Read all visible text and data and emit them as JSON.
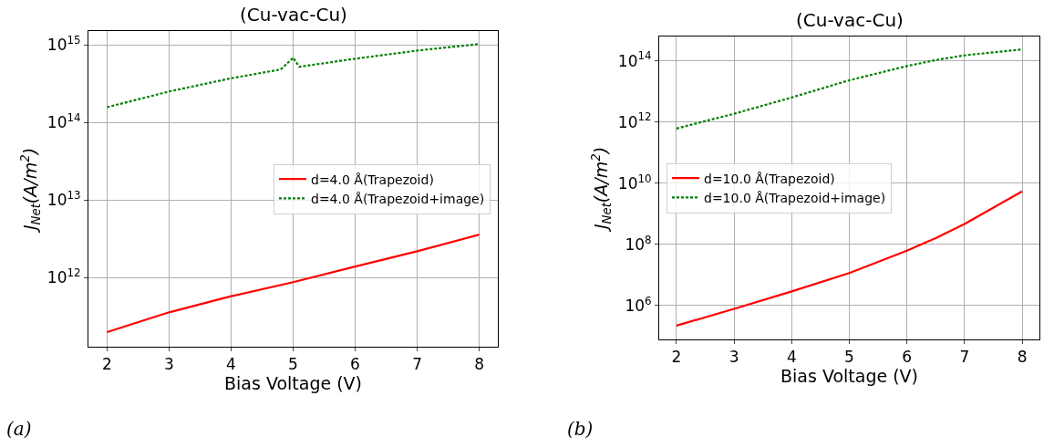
{
  "chart_data": [
    {
      "type": "line",
      "title": "(Cu-vac-Cu)",
      "xlabel": "Bias Voltage (V)",
      "ylabel": "J$_{Net}$(A/m$^{2}$)",
      "log": "y",
      "grid": true,
      "legend": "right",
      "xlim": [
        1.7,
        8.3
      ],
      "xticks": [
        2,
        3,
        4,
        5,
        6,
        7,
        8
      ],
      "ylim": [
        130000000000.0,
        1500000000000000.0
      ],
      "yticks": [
        {
          "value": 1000000000000.0,
          "label": "10$^{12}$"
        },
        {
          "value": 10000000000000.0,
          "label": "10$^{13}$"
        },
        {
          "value": 100000000000000.0,
          "label": "10$^{14}$"
        },
        {
          "value": 1000000000000000.0,
          "label": "10$^{15}$"
        }
      ],
      "annotations": [
        "(a)"
      ],
      "series": [
        {
          "name": "d=4.0 Å(Trapezoid)",
          "color": "#ff0000",
          "line_style": "solid",
          "x": [
            2,
            3,
            4,
            5,
            6,
            7,
            8
          ],
          "values": [
            200000000000.0,
            360000000000.0,
            580000000000.0,
            880000000000.0,
            1400000000000.0,
            2200000000000.0,
            3600000000000.0
          ]
        },
        {
          "name": "d=4.0 Å(Trapezoid+image)",
          "color": "#008000",
          "line_style": "dotted",
          "x": [
            2,
            3,
            4,
            4.8,
            5,
            5.1,
            6,
            7,
            8
          ],
          "values": [
            157000000000000.0,
            250000000000000.0,
            370000000000000.0,
            480000000000000.0,
            680000000000000.0,
            520000000000000.0,
            660000000000000.0,
            840000000000000.0,
            1020000000000000.0
          ]
        }
      ]
    },
    {
      "type": "line",
      "title": "(Cu-vac-Cu)",
      "xlabel": "Bias Voltage (V)",
      "ylabel": "J$_{Net}$(A/m$^{2}$)",
      "log": "y",
      "grid": true,
      "legend": "left",
      "xlim": [
        1.7,
        8.3
      ],
      "xticks": [
        2,
        3,
        4,
        5,
        6,
        7,
        8
      ],
      "ylim": [
        78000.0,
        620000000000000.0
      ],
      "yticks": [
        {
          "value": 1000000.0,
          "label": "10$^{6}$"
        },
        {
          "value": 100000000.0,
          "label": "10$^{8}$"
        },
        {
          "value": 10000000000.0,
          "label": "10$^{10}$"
        },
        {
          "value": 1000000000000.0,
          "label": "10$^{12}$"
        },
        {
          "value": 100000000000000.0,
          "label": "10$^{14}$"
        }
      ],
      "annotations": [
        "(b)"
      ],
      "series": [
        {
          "name": "d=10.0 Å(Trapezoid)",
          "color": "#ff0000",
          "line_style": "solid",
          "x": [
            2,
            3,
            4,
            5,
            6,
            6.5,
            7,
            8
          ],
          "values": [
            220000.0,
            780000.0,
            2900000.0,
            11500000.0,
            62000000.0,
            160000000.0,
            460000000.0,
            5400000000.0
          ]
        },
        {
          "name": "d=10.0 Å(Trapezoid+image)",
          "color": "#008000",
          "line_style": "dotted",
          "x": [
            2,
            3,
            4,
            5,
            6,
            6.5,
            7,
            8
          ],
          "values": [
            610000000000.0,
            1850000000000.0,
            6300000000000.0,
            23000000000000.0,
            67000000000000.0,
            105000000000000.0,
            150000000000000.0,
            235000000000000.0
          ]
        }
      ]
    }
  ]
}
